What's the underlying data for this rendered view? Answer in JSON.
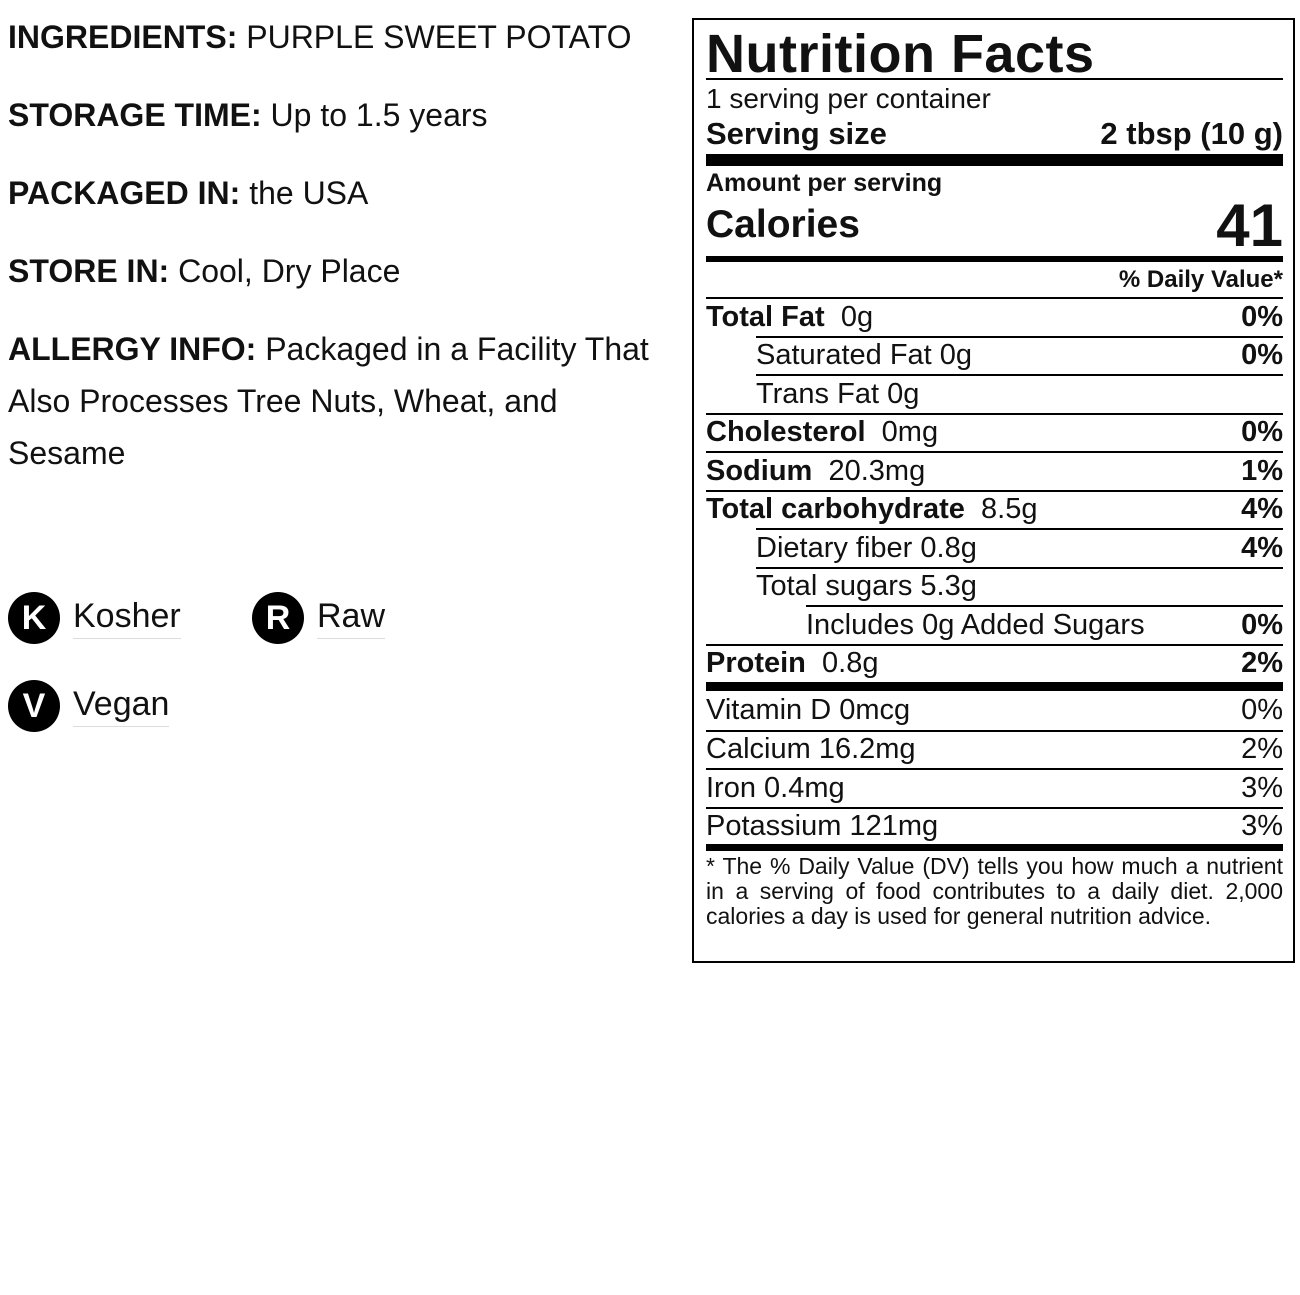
{
  "info": [
    {
      "label": "INGREDIENTS:",
      "text": "PURPLE SWEET POTATO"
    },
    {
      "label": "STORAGE TIME:",
      "text": "Up to 1.5 years"
    },
    {
      "label": "PACKAGED IN:",
      "text": "the USA"
    },
    {
      "label": "STORE IN:",
      "text": "Cool, Dry Place"
    },
    {
      "label": "ALLERGY INFO:",
      "text": "Packaged in a Facility That Also Processes Tree Nuts, Wheat, and Sesame"
    }
  ],
  "badges": [
    {
      "letter": "K",
      "label": "Kosher"
    },
    {
      "letter": "R",
      "label": "Raw"
    },
    {
      "letter": "V",
      "label": "Vegan"
    }
  ],
  "nutrition": {
    "title": "Nutrition Facts",
    "servings": "1 serving per container",
    "serving_size_label": "Serving size",
    "serving_size_value": "2 tbsp (10 g)",
    "amount_label": "Amount per serving",
    "calories_label": "Calories",
    "calories_value": 41,
    "dv_header": "% Daily Value*",
    "nutrients": [
      {
        "name": "Total Fat",
        "amount": "0g",
        "dv": "0%",
        "kind": "main"
      },
      {
        "name": "Saturated Fat",
        "amount": "0g",
        "dv": "0%",
        "kind": "sub"
      },
      {
        "name": "Trans Fat",
        "amount": "0g",
        "kind": "sub"
      },
      {
        "name": "Cholesterol",
        "amount": "0mg",
        "dv": "0%",
        "kind": "main"
      },
      {
        "name": "Sodium",
        "amount": "20.3mg",
        "dv": "1%",
        "kind": "main"
      },
      {
        "name": "Total carbohydrate",
        "amount": "8.5g",
        "dv": "4%",
        "kind": "main"
      },
      {
        "name": "Dietary fiber",
        "amount": "0.8g",
        "dv": "4%",
        "kind": "sub"
      },
      {
        "name": "Total sugars",
        "amount": "5.3g",
        "kind": "sub"
      },
      {
        "name": "Includes 0g Added Sugars",
        "dv": "0%",
        "kind": "subsub"
      },
      {
        "name": "Protein",
        "amount": "0.8g",
        "dv": "2%",
        "kind": "main"
      }
    ],
    "vitamins": [
      {
        "name": "Vitamin D",
        "amount": "0mcg",
        "dv": "0%"
      },
      {
        "name": "Calcium",
        "amount": "16.2mg",
        "dv": "2%"
      },
      {
        "name": "Iron",
        "amount": "0.4mg",
        "dv": "3%"
      },
      {
        "name": "Potassium",
        "amount": "121mg",
        "dv": "3%"
      }
    ],
    "footnote": "* The % Daily Value (DV) tells you how much a nutrient in a serving of food contributes to a daily diet. 2,000 calories a day is used for general nutrition advice."
  }
}
